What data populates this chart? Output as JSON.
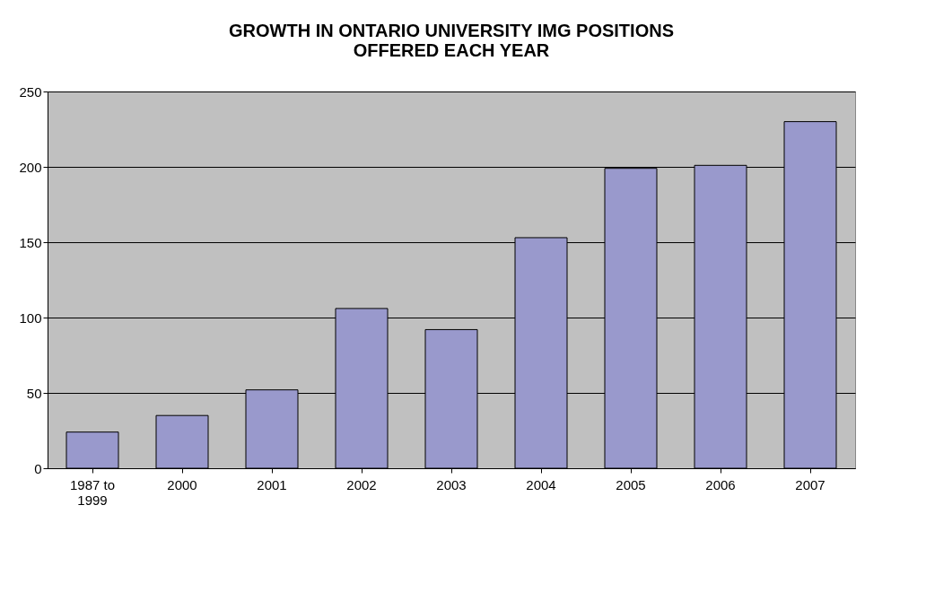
{
  "chart_data": {
    "type": "bar",
    "title": [
      "GROWTH IN ONTARIO UNIVERSITY IMG POSITIONS",
      "OFFERED EACH YEAR"
    ],
    "categories": [
      "1987 to 1999",
      "2000",
      "2001",
      "2002",
      "2003",
      "2004",
      "2005",
      "2006",
      "2007"
    ],
    "values": [
      24,
      35,
      52,
      106,
      92,
      153,
      199,
      201,
      230
    ],
    "color": "#9999cc",
    "ylim": [
      0,
      250
    ],
    "yticks": [
      0,
      50,
      100,
      150,
      200,
      250
    ],
    "grid": "y"
  }
}
